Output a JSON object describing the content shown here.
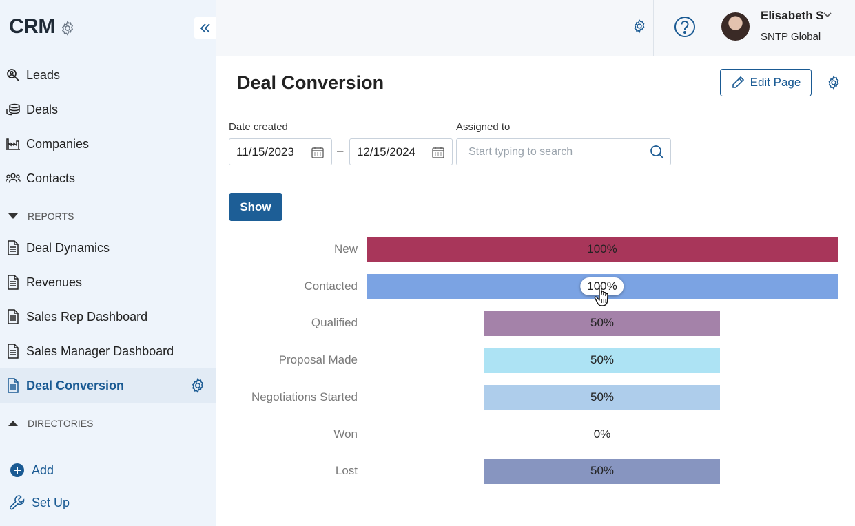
{
  "sidebar": {
    "brand": "CRM",
    "items": [
      {
        "label": "Leads",
        "icon": "lead-search-icon"
      },
      {
        "label": "Deals",
        "icon": "coins-stack-icon"
      },
      {
        "label": "Companies",
        "icon": "factory-icon"
      },
      {
        "label": "Contacts",
        "icon": "people-icon"
      }
    ],
    "reports_label": "REPORTS",
    "reports": [
      {
        "label": "Deal Dynamics",
        "icon": "document-icon"
      },
      {
        "label": "Revenues",
        "icon": "document-icon"
      },
      {
        "label": "Sales Rep Dashboard",
        "icon": "document-icon"
      },
      {
        "label": "Sales Manager Dashboard",
        "icon": "document-icon"
      },
      {
        "label": "Deal Conversion",
        "icon": "document-icon",
        "active": true
      }
    ],
    "directories_label": "DIRECTORIES",
    "add_label": "Add",
    "setup_label": "Set Up"
  },
  "topbar": {
    "user_name": "Elisabeth S",
    "user_org": "SNTP Global"
  },
  "page": {
    "title": "Deal Conversion",
    "edit_label": "Edit Page"
  },
  "filters": {
    "date_label": "Date created",
    "date_from": "11/15/2023",
    "date_sep": "–",
    "date_to": "12/15/2024",
    "assigned_label": "Assigned to",
    "assigned_placeholder": "Start typing to search",
    "show_label": "Show"
  },
  "colors": {
    "accent": "#1d5e96",
    "sidebar_bg": "#eef4fb"
  },
  "chart_data": {
    "type": "bar",
    "orientation": "horizontal-funnel",
    "categories": [
      "New",
      "Contacted",
      "Qualified",
      "Proposal Made",
      "Negotiations Started",
      "Won",
      "Lost"
    ],
    "values": [
      100,
      100,
      50,
      50,
      50,
      0,
      50
    ],
    "labels": [
      "100%",
      "100%",
      "50%",
      "50%",
      "50%",
      "0%",
      "50%"
    ],
    "colors": [
      "#a8365a",
      "#7ba3e3",
      "#a482a9",
      "#ade3f4",
      "#aecdeb",
      "#ffffff",
      "#8795c0"
    ],
    "unit": "%",
    "xlim": [
      0,
      100
    ],
    "hovered_index": 1
  }
}
